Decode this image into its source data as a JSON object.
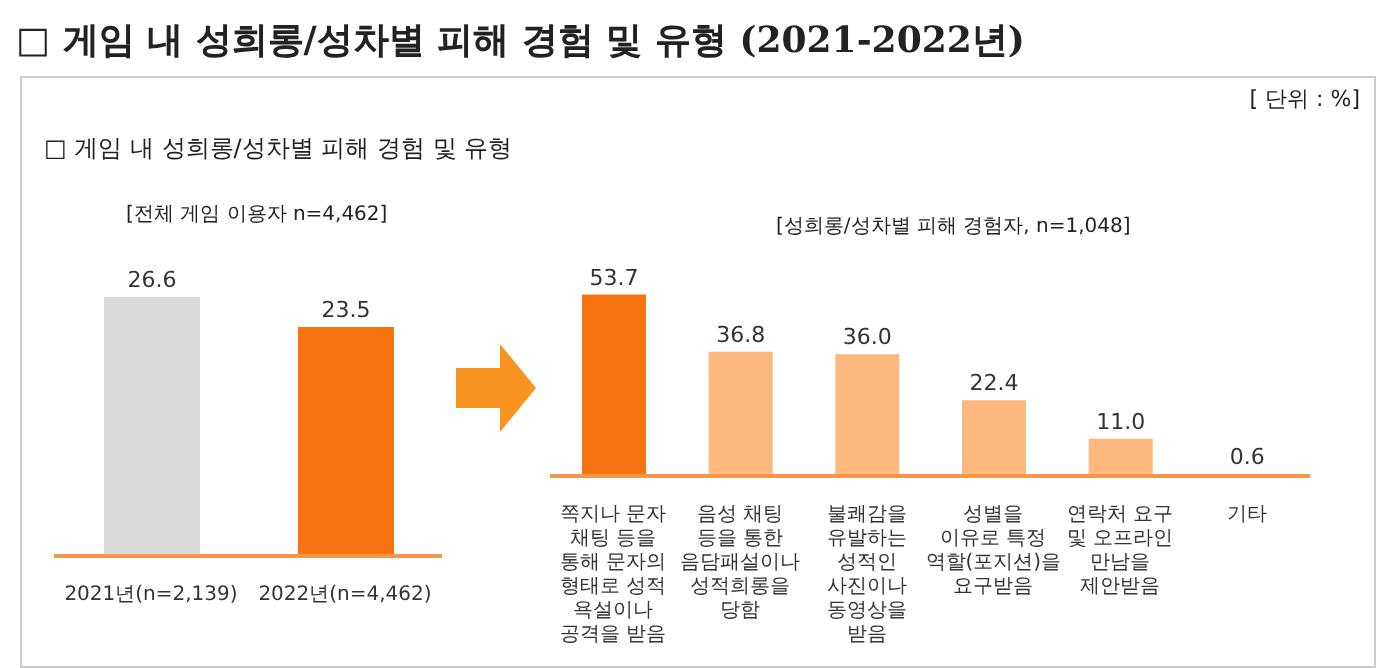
{
  "chart_data": [
    {
      "type": "bar",
      "title": "□ 게임 내 성희롱/성차별 피해 경험 및 유형 (2021-2022년)",
      "subtitle": "□ 게임 내 성희롱/성차별 피해 경험 및 유형",
      "annotations": [
        "[ 단위 : %]",
        "[전체 게임 이용자 n=4,462]"
      ],
      "categories": [
        "2021년(n=2,139)",
        "2022년(n=4,462)"
      ],
      "values": [
        26.6,
        23.5
      ],
      "colors": [
        "#d9d9d9",
        "#f7730f"
      ],
      "data_labels": true
    },
    {
      "type": "bar",
      "title": "[성희롱/성차별 피해 경험자, n=1,048]",
      "categories": [
        "쪽지나 문자 채팅 등을 통해 문자의 형태로 성적 욕설이나 공격을 받음",
        "음성 채팅 등을 통한 음담패설이나 성적희롱을 당함",
        "불쾌감을 유발하는 성적인 사진이나 동영상을 받음",
        "성별을 이유로 특정 역할(포지션)을 요구받음",
        "연락처 요구 및 오프라인 만남을 제안받음",
        "기타"
      ],
      "values": [
        53.7,
        36.8,
        36.0,
        22.4,
        11.0,
        0.6
      ],
      "colors": [
        "#f7730f",
        "#fdb97d",
        "#fdb97d",
        "#fdb97d",
        "#fdb97d",
        "#fdb97d"
      ],
      "value_labels": [
        "53.7",
        "36.8",
        "36.0",
        "22.4",
        "11.0",
        "0.6"
      ]
    }
  ]
}
